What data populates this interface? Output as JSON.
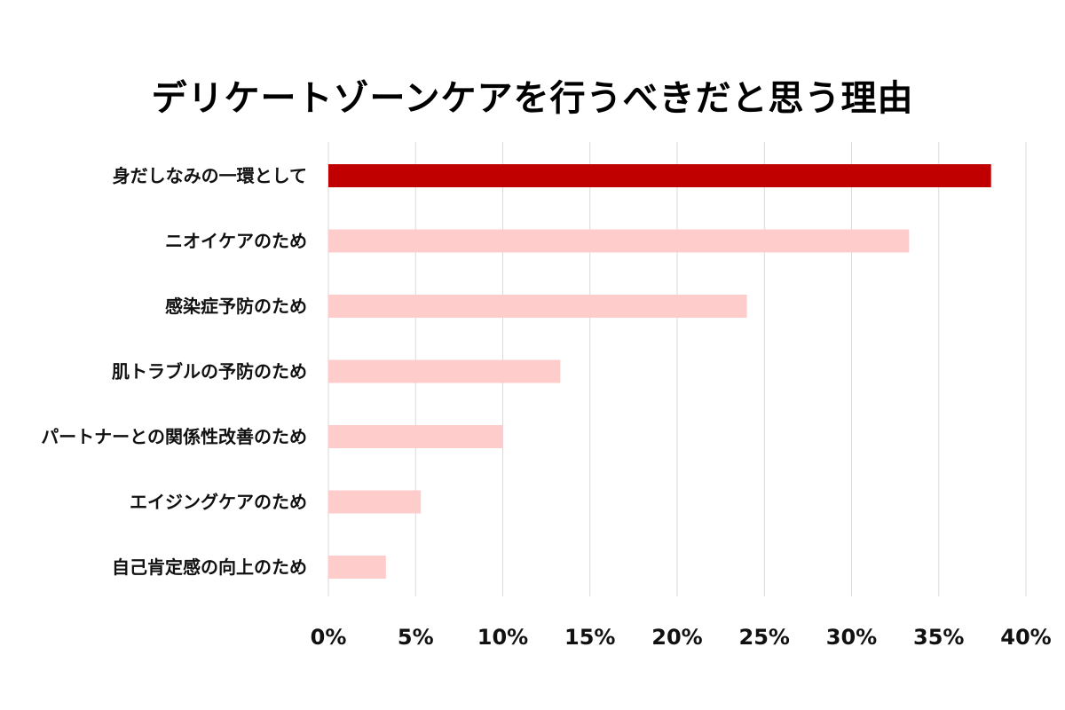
{
  "chart_data": {
    "type": "bar",
    "orientation": "horizontal",
    "title": "デリケートゾーンケアを行うべきだと思う理由",
    "categories": [
      "身だしなみの一環として",
      "ニオイケアのため",
      "感染症予防のため",
      "肌トラブルの予防のため",
      "パートナーとの関係性改善のため",
      "エイジングケアのため",
      "自己肯定感の向上のため"
    ],
    "values": [
      38.0,
      33.3,
      24.0,
      13.3,
      10.0,
      5.3,
      3.3
    ],
    "xlim": [
      0,
      40
    ],
    "x_ticks": [
      0,
      5,
      10,
      15,
      20,
      25,
      30,
      35,
      40
    ],
    "x_tick_labels": [
      "0%",
      "5%",
      "10%",
      "15%",
      "20%",
      "25%",
      "30%",
      "35%",
      "40%"
    ],
    "grid": "vertical",
    "legend": "none",
    "colors": {
      "highlight": "#c00000",
      "bar": "#ffcccc",
      "grid": "#d9d9d9"
    }
  }
}
